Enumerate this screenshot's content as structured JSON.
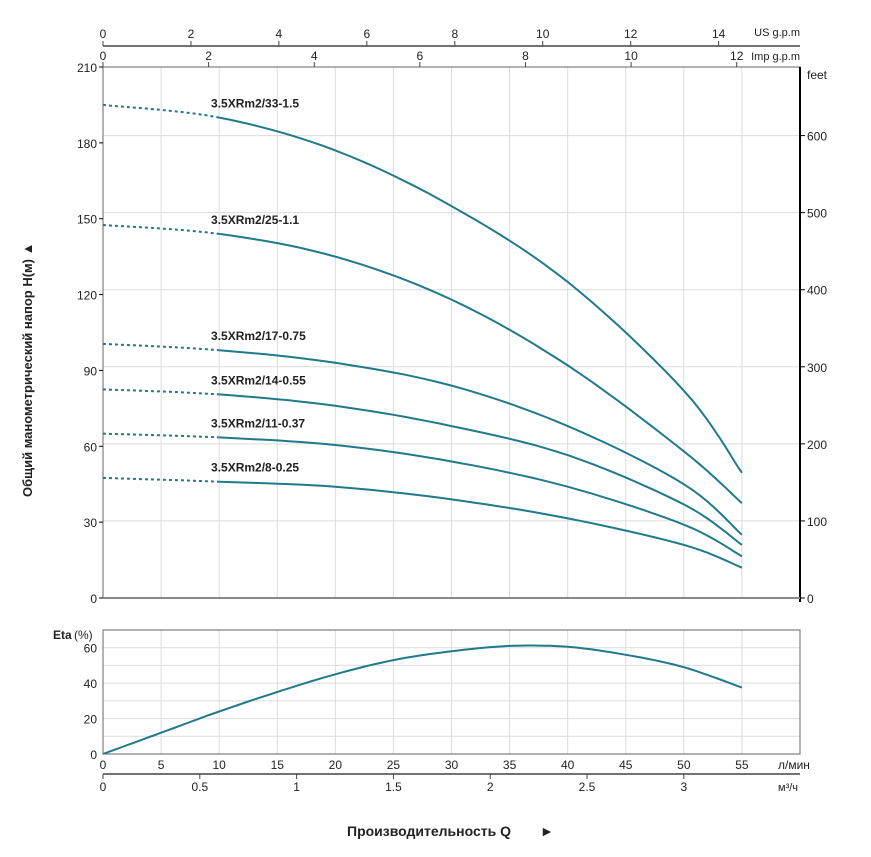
{
  "chart_data": [
    {
      "type": "line",
      "title": "",
      "xlabel": "Производительность Q",
      "xlabel_arrow": "►",
      "ylabel": "Общий манометрический напор H(м)",
      "ylabel_arrow": "▲",
      "x_unit": "л/мин",
      "xlim": [
        0,
        60
      ],
      "ylim": [
        0,
        210
      ],
      "y_ticks": [
        0,
        30,
        60,
        90,
        120,
        150,
        180,
        210
      ],
      "x_ticks": [
        0,
        5,
        10,
        15,
        20,
        25,
        30,
        35,
        40,
        45,
        50,
        55
      ],
      "secondary_axes": {
        "m3h": {
          "label": "м³/ч",
          "ticks": [
            "0",
            "0.5",
            "1",
            "1.5",
            "2",
            "2.5",
            "3"
          ]
        },
        "us_gpm": {
          "label": "US g.p.m",
          "ticks": [
            "0",
            "2",
            "4",
            "6",
            "8",
            "10",
            "12",
            "14"
          ]
        },
        "imp_gpm": {
          "label": "Imp g.p.m",
          "ticks": [
            "0",
            "2",
            "4",
            "6",
            "8",
            "10",
            "12"
          ]
        },
        "feet": {
          "label": "feet",
          "ticks": [
            "0",
            "100",
            "200",
            "300",
            "400",
            "500",
            "600"
          ]
        }
      },
      "grid": true,
      "dashed_range": [
        0,
        10
      ],
      "x": [
        0,
        10,
        20,
        30,
        40,
        50,
        55
      ],
      "series": [
        {
          "name": "3.5XRm2/33-1.5",
          "values": [
            195,
            190,
            177,
            155,
            125,
            82,
            49.5
          ]
        },
        {
          "name": "3.5XRm2/25-1.1",
          "values": [
            147.5,
            144,
            135,
            118,
            92,
            58,
            37.5
          ]
        },
        {
          "name": "3.5XRm2/17-0.75",
          "values": [
            100.5,
            98,
            93,
            84,
            68,
            45,
            25
          ]
        },
        {
          "name": "3.5XRm2/14-0.55",
          "values": [
            82.5,
            80.5,
            76,
            68,
            56.5,
            37,
            21
          ]
        },
        {
          "name": "3.5XRm2/11-0.37",
          "values": [
            65,
            63.5,
            60.5,
            54,
            44,
            29,
            16.5
          ]
        },
        {
          "name": "3.5XRm2/8-0.25",
          "values": [
            47.5,
            46,
            44,
            39,
            31.5,
            21,
            12
          ]
        }
      ],
      "color": "#1f7a8c"
    },
    {
      "type": "line",
      "ylabel": "Eta",
      "ylabel_unit": "(%)",
      "xlim": [
        0,
        60
      ],
      "ylim": [
        0,
        70
      ],
      "y_ticks": [
        0,
        20,
        40,
        60
      ],
      "x": [
        0,
        5,
        10,
        15,
        20,
        25,
        30,
        35,
        40,
        45,
        50,
        55
      ],
      "series": [
        {
          "name": "Eta",
          "values": [
            0,
            12,
            24,
            35,
            45,
            53,
            58,
            61,
            60.5,
            56,
            49,
            37.5
          ]
        }
      ],
      "color": "#1f7a8c"
    }
  ]
}
